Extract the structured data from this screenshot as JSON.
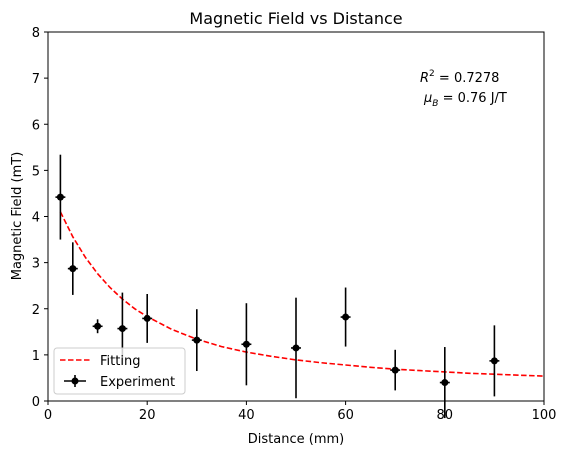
{
  "chart_data": {
    "type": "scatter",
    "title": "Magnetic Field vs Distance",
    "xlabel": "Distance (mm)",
    "ylabel": "Magnetic Field (mT)",
    "xlim": [
      0,
      100
    ],
    "ylim": [
      0,
      8
    ],
    "xticks": [
      0,
      20,
      40,
      60,
      80,
      100
    ],
    "yticks": [
      0,
      1,
      2,
      3,
      4,
      5,
      6,
      7,
      8
    ],
    "grid": false,
    "legend_position": "lower-left",
    "series": [
      {
        "name": "Experiment",
        "kind": "errorbar",
        "color": "#000000",
        "points": [
          {
            "x": 2.5,
            "y": 4.42,
            "xerr": 1.0,
            "yerr": 0.92
          },
          {
            "x": 5,
            "y": 2.87,
            "xerr": 1.0,
            "yerr": 0.57
          },
          {
            "x": 10,
            "y": 1.62,
            "xerr": 1.0,
            "yerr": 0.15
          },
          {
            "x": 15,
            "y": 1.57,
            "xerr": 1.0,
            "yerr": 0.78
          },
          {
            "x": 20,
            "y": 1.79,
            "xerr": 1.0,
            "yerr": 0.53
          },
          {
            "x": 30,
            "y": 1.32,
            "xerr": 1.0,
            "yerr": 0.67
          },
          {
            "x": 40,
            "y": 1.23,
            "xerr": 1.0,
            "yerr": 0.89
          },
          {
            "x": 50,
            "y": 1.15,
            "xerr": 1.0,
            "yerr": 1.09
          },
          {
            "x": 60,
            "y": 1.82,
            "xerr": 1.0,
            "yerr": 0.64
          },
          {
            "x": 70,
            "y": 0.67,
            "xerr": 1.0,
            "yerr": 0.44
          },
          {
            "x": 80,
            "y": 0.4,
            "xerr": 1.0,
            "yerr": 0.77
          },
          {
            "x": 90,
            "y": 0.87,
            "xerr": 1.0,
            "yerr": 0.77
          }
        ]
      },
      {
        "name": "Fitting",
        "kind": "line",
        "style": "dashed",
        "color": "#ff0000",
        "x": [
          2.5,
          5,
          7.5,
          10,
          12.5,
          15,
          17.5,
          20,
          25,
          30,
          35,
          40,
          45,
          50,
          55,
          60,
          65,
          70,
          75,
          80,
          85,
          90,
          95,
          100
        ],
        "y": [
          4.1,
          3.56,
          3.12,
          2.76,
          2.46,
          2.21,
          2.0,
          1.83,
          1.55,
          1.34,
          1.18,
          1.06,
          0.97,
          0.89,
          0.83,
          0.78,
          0.73,
          0.69,
          0.66,
          0.63,
          0.6,
          0.58,
          0.56,
          0.54
        ]
      }
    ],
    "annotations": {
      "r2_prefix": "R",
      "r2_sup": "2",
      "r2_value": " = 0.7278",
      "mu_symbol": "μ",
      "mu_sub": "B",
      "mu_value": " = 0.76 J/T"
    }
  }
}
